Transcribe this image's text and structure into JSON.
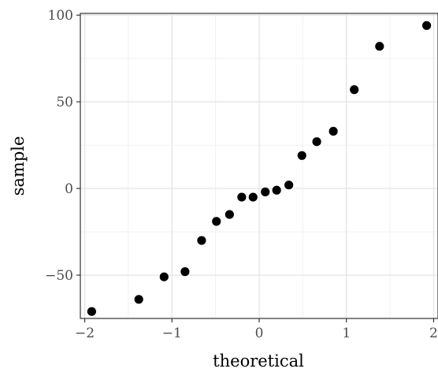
{
  "chart_data": {
    "type": "scatter",
    "title": "",
    "xlabel": "theoretical",
    "ylabel": "sample",
    "xlim": [
      -2.05,
      2.05
    ],
    "ylim": [
      -75,
      101
    ],
    "x_ticks": [
      -2,
      -1,
      0,
      1,
      2
    ],
    "x_tick_labels": [
      "−2",
      "−1",
      "0",
      "1",
      "2"
    ],
    "y_ticks": [
      -50,
      0,
      50,
      100
    ],
    "y_tick_labels": [
      "−50",
      "0",
      "50",
      "100"
    ],
    "grid": true,
    "point_color": "#000000",
    "points": [
      {
        "x": -1.92,
        "y": -71
      },
      {
        "x": -1.38,
        "y": -64
      },
      {
        "x": -1.09,
        "y": -51
      },
      {
        "x": -0.85,
        "y": -48
      },
      {
        "x": -0.66,
        "y": -30
      },
      {
        "x": -0.49,
        "y": -19
      },
      {
        "x": -0.34,
        "y": -15
      },
      {
        "x": -0.2,
        "y": -5
      },
      {
        "x": -0.07,
        "y": -5
      },
      {
        "x": 0.07,
        "y": -2
      },
      {
        "x": 0.2,
        "y": -1
      },
      {
        "x": 0.34,
        "y": 2
      },
      {
        "x": 0.49,
        "y": 19
      },
      {
        "x": 0.66,
        "y": 27
      },
      {
        "x": 0.85,
        "y": 33
      },
      {
        "x": 1.09,
        "y": 57
      },
      {
        "x": 1.38,
        "y": 82
      },
      {
        "x": 1.92,
        "y": 94
      }
    ]
  }
}
